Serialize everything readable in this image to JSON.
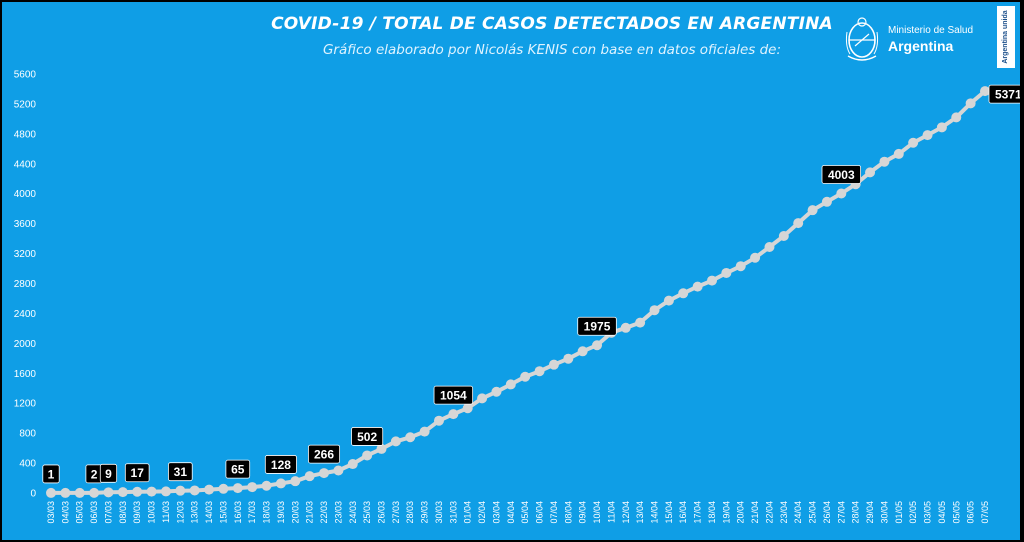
{
  "header": {
    "title": "COVID-19  /  TOTAL DE CASOS DETECTADOS EN ARGENTINA",
    "subtitle": "Gráfico elaborado por Nicolás KENIS con base en datos oficiales de:"
  },
  "logo": {
    "ministry": "Ministerio de Salud",
    "country": "Argentina",
    "brand": "Argentina unida",
    "icon": "national-seal-icon"
  },
  "colors": {
    "background": "#0f9ee6",
    "line": "#d6d6d6",
    "marker": "#d6d6d6",
    "label_box": "#000000",
    "text": "#ffffff"
  },
  "chart_data": {
    "type": "line",
    "title": "COVID-19  /  TOTAL DE CASOS DETECTADOS EN ARGENTINA",
    "xlabel": "",
    "ylabel": "",
    "ylim": [
      0,
      5600
    ],
    "yticks": [
      0,
      400,
      800,
      1200,
      1600,
      2000,
      2400,
      2800,
      3200,
      3600,
      4000,
      4400,
      4800,
      5200,
      5600
    ],
    "grid": false,
    "legend": "none",
    "x": [
      "03/03",
      "04/03",
      "05/03",
      "06/03",
      "07/03",
      "08/03",
      "09/03",
      "10/03",
      "11/03",
      "12/03",
      "13/03",
      "14/03",
      "15/03",
      "16/03",
      "17/03",
      "18/03",
      "19/03",
      "20/03",
      "21/03",
      "22/03",
      "23/03",
      "24/03",
      "25/03",
      "26/03",
      "27/03",
      "28/03",
      "29/03",
      "30/03",
      "31/03",
      "01/04",
      "02/04",
      "03/04",
      "04/04",
      "05/04",
      "06/04",
      "07/04",
      "08/04",
      "09/04",
      "10/04",
      "11/04",
      "12/04",
      "13/04",
      "14/04",
      "15/04",
      "16/04",
      "17/04",
      "18/04",
      "19/04",
      "20/04",
      "21/04",
      "22/04",
      "23/04",
      "24/04",
      "25/04",
      "26/04",
      "27/04",
      "28/04",
      "29/04",
      "30/04",
      "01/05",
      "02/05",
      "03/05",
      "04/05",
      "05/05",
      "06/05",
      "07/05"
    ],
    "values": [
      1,
      1,
      1,
      2,
      9,
      12,
      17,
      19,
      21,
      31,
      34,
      45,
      56,
      65,
      79,
      97,
      128,
      158,
      225,
      266,
      301,
      387,
      502,
      589,
      690,
      745,
      820,
      966,
      1054,
      1133,
      1265,
      1353,
      1451,
      1554,
      1628,
      1715,
      1795,
      1894,
      1975,
      2142,
      2208,
      2277,
      2443,
      2571,
      2669,
      2758,
      2839,
      2941,
      3031,
      3144,
      3288,
      3435,
      3607,
      3780,
      3892,
      4003,
      4127,
      4285,
      4428,
      4532,
      4681,
      4783,
      4887,
      5020,
      5208,
      5371
    ],
    "labels": [
      {
        "index": 0,
        "text": "1"
      },
      {
        "index": 3,
        "text": "2"
      },
      {
        "index": 4,
        "text": "9"
      },
      {
        "index": 6,
        "text": "17"
      },
      {
        "index": 9,
        "text": "31"
      },
      {
        "index": 13,
        "text": "65"
      },
      {
        "index": 16,
        "text": "128"
      },
      {
        "index": 19,
        "text": "266"
      },
      {
        "index": 22,
        "text": "502"
      },
      {
        "index": 28,
        "text": "1054"
      },
      {
        "index": 38,
        "text": "1975"
      },
      {
        "index": 55,
        "text": "4003"
      },
      {
        "index": 65,
        "text": "5371"
      }
    ]
  }
}
